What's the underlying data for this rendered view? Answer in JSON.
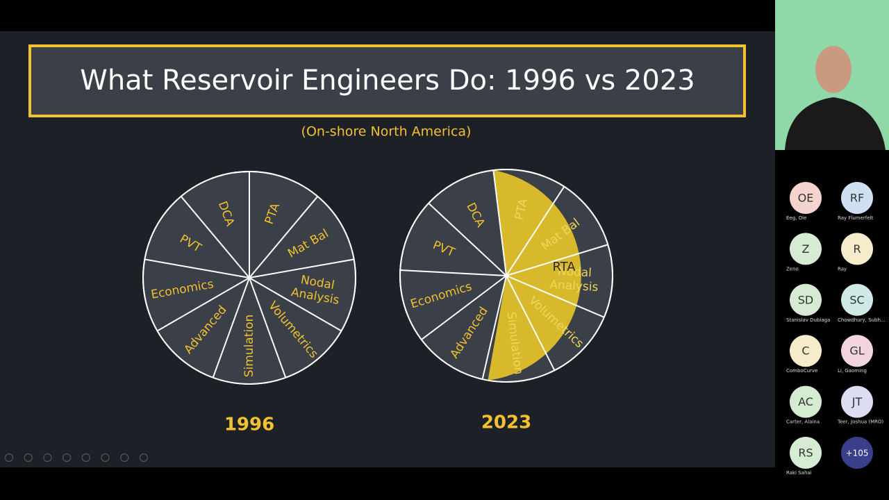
{
  "slide": {
    "title": "What Reservoir Engineers Do: 1996 vs 2023",
    "subtitle": "(On-shore North America)",
    "pies": [
      {
        "year": "1996",
        "slices": [
          [
            "PTA"
          ],
          [
            "Mat Bal"
          ],
          [
            "Nodal",
            "Analysis"
          ],
          [
            "Volumetrics"
          ],
          [
            "Simulation"
          ],
          [
            "Advanced"
          ],
          [
            "Economics"
          ],
          [
            "PVT"
          ],
          [
            "DCA"
          ]
        ]
      },
      {
        "year": "2023",
        "slices": [
          [
            "PTA"
          ],
          [
            "Mat Bal"
          ],
          [
            "Nodal",
            "Analysis"
          ],
          [
            "Volumetrics"
          ],
          [
            "Simulation"
          ],
          [
            "Advanced"
          ],
          [
            "Economics"
          ],
          [
            "PVT"
          ],
          [
            "DCA"
          ]
        ],
        "highlight": "RTA"
      }
    ]
  },
  "participants": [
    {
      "initials": "OE",
      "name": "Eeg, Ole",
      "color": "#f4d4cf"
    },
    {
      "initials": "RF",
      "name": "Ray Flumerfelt",
      "color": "#cfe0f2"
    },
    {
      "initials": "Z",
      "name": "Zeno",
      "color": "#d5ecd2"
    },
    {
      "initials": "R",
      "name": "Ray",
      "color": "#f6eccb"
    },
    {
      "initials": "SD",
      "name": "Stanislav Dubiaga",
      "color": "#d5ecd2"
    },
    {
      "initials": "SC",
      "name": "Chowdhury, Subh...",
      "color": "#cfe9e6"
    },
    {
      "initials": "C",
      "name": "ComboCurve",
      "color": "#f6eccb"
    },
    {
      "initials": "GL",
      "name": "Li, Gaoming",
      "color": "#f2d5dc"
    },
    {
      "initials": "AC",
      "name": "Carter, Alaina",
      "color": "#d5ecd2"
    },
    {
      "initials": "JT",
      "name": "Teer, Joshua (MRO)",
      "color": "#dcdcf2"
    },
    {
      "initials": "RS",
      "name": "Raki Sahai",
      "color": "#d5ecd2"
    }
  ],
  "overflow": "+105"
}
